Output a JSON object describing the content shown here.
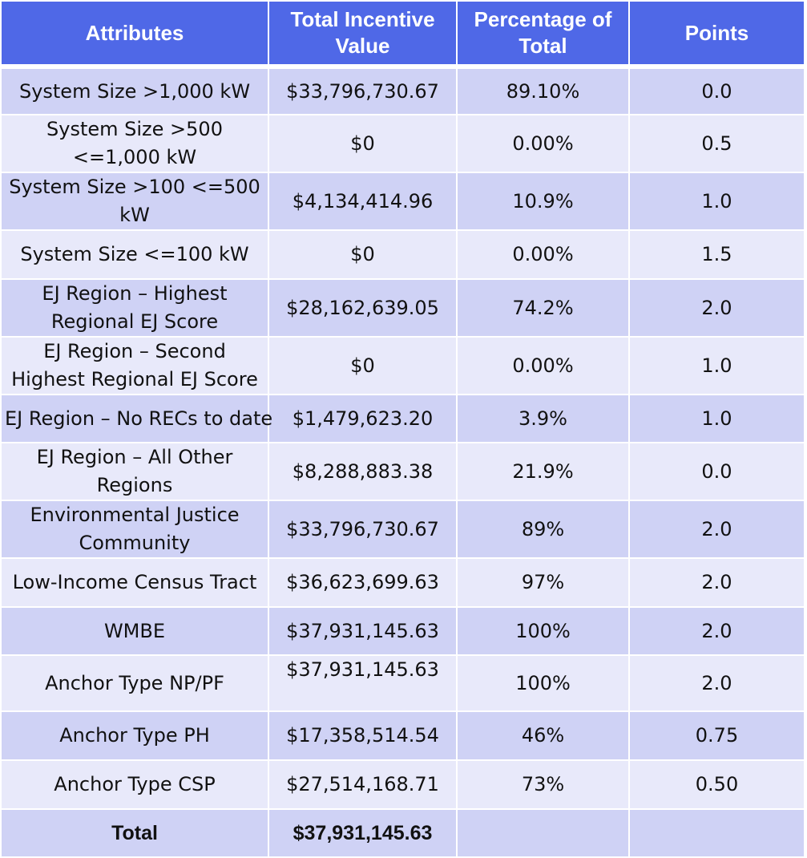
{
  "headers": {
    "attributes": "Attributes",
    "total_incentive_value": "Total Incentive Value",
    "percentage_of_total": "Percentage of Total",
    "points": "Points"
  },
  "rows": [
    {
      "attribute": "System Size >1,000 kW",
      "value": "$33,796,730.67",
      "percent": "89.10%",
      "points": "0.0"
    },
    {
      "attribute": "System Size >500 <=1,000 kW",
      "value": "$0",
      "percent": "0.00%",
      "points": "0.5"
    },
    {
      "attribute": "System Size >100 <=500 kW",
      "value": "$4,134,414.96",
      "percent": "10.9%",
      "points": "1.0"
    },
    {
      "attribute": "System Size <=100 kW",
      "value": "$0",
      "percent": "0.00%",
      "points": "1.5"
    },
    {
      "attribute": "EJ Region – Highest Regional EJ Score",
      "value": "$28,162,639.05",
      "percent": "74.2%",
      "points": "2.0"
    },
    {
      "attribute": "EJ Region – Second Highest Regional EJ Score",
      "value": "$0",
      "percent": "0.00%",
      "points": "1.0"
    },
    {
      "attribute": "EJ Region – No RECs to date",
      "value": "$1,479,623.20",
      "percent": "3.9%",
      "points": "1.0"
    },
    {
      "attribute": "EJ Region – All Other Regions",
      "value": "$8,288,883.38",
      "percent": "21.9%",
      "points": "0.0"
    },
    {
      "attribute": "Environmental Justice Community",
      "value": "$33,796,730.67",
      "percent": "89%",
      "points": "2.0"
    },
    {
      "attribute": "Low-Income Census Tract",
      "value": "$36,623,699.63",
      "percent": "97%",
      "points": "2.0"
    },
    {
      "attribute": "WMBE",
      "value": "$37,931,145.63",
      "percent": "100%",
      "points": "2.0"
    },
    {
      "attribute": "Anchor Type NP/PF",
      "value": "$37,931,145.63",
      "percent": "100%",
      "points": "2.0"
    },
    {
      "attribute": "Anchor Type PH",
      "value": "$17,358,514.54",
      "percent": "46%",
      "points": "0.75"
    },
    {
      "attribute": "Anchor Type CSP",
      "value": "$27,514,168.71",
      "percent": "73%",
      "points": "0.50"
    }
  ],
  "total": {
    "label": "Total",
    "value": "$37,931,145.63",
    "percent": "",
    "points": ""
  },
  "colors": {
    "header_bg": "#4f68e7",
    "row_dark": "#cfd2f5",
    "row_light": "#e8e9fa"
  }
}
